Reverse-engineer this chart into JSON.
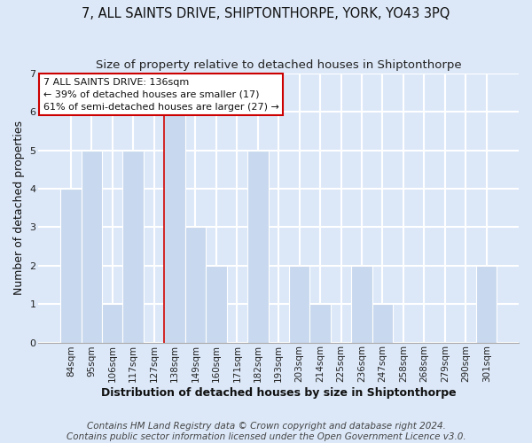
{
  "title": "7, ALL SAINTS DRIVE, SHIPTONTHORPE, YORK, YO43 3PQ",
  "subtitle": "Size of property relative to detached houses in Shiptonthorpe",
  "xlabel": "Distribution of detached houses by size in Shiptonthorpe",
  "ylabel": "Number of detached properties",
  "footer_lines": [
    "Contains HM Land Registry data © Crown copyright and database right 2024.",
    "Contains public sector information licensed under the Open Government Licence v3.0."
  ],
  "bin_labels": [
    "84sqm",
    "95sqm",
    "106sqm",
    "117sqm",
    "127sqm",
    "138sqm",
    "149sqm",
    "160sqm",
    "171sqm",
    "182sqm",
    "193sqm",
    "203sqm",
    "214sqm",
    "225sqm",
    "236sqm",
    "247sqm",
    "258sqm",
    "268sqm",
    "279sqm",
    "290sqm",
    "301sqm"
  ],
  "bar_values": [
    4,
    5,
    1,
    5,
    0,
    6,
    3,
    2,
    0,
    5,
    0,
    2,
    1,
    0,
    2,
    1,
    0,
    0,
    0,
    0,
    2
  ],
  "bar_color": "#c8d8ee",
  "bar_edge_color": "#b0c8e8",
  "highlight_line_color": "#cc0000",
  "annotation_box_text": "7 ALL SAINTS DRIVE: 136sqm\n← 39% of detached houses are smaller (17)\n61% of semi-detached houses are larger (27) →",
  "ylim": [
    0,
    7
  ],
  "yticks": [
    0,
    1,
    2,
    3,
    4,
    5,
    6,
    7
  ],
  "background_color": "#dce8f8",
  "plot_background_color": "#dce8f8",
  "grid_color": "#ffffff",
  "title_fontsize": 10.5,
  "subtitle_fontsize": 9.5,
  "axis_label_fontsize": 9,
  "tick_fontsize": 7.5,
  "annotation_fontsize": 8,
  "footer_fontsize": 7.5
}
